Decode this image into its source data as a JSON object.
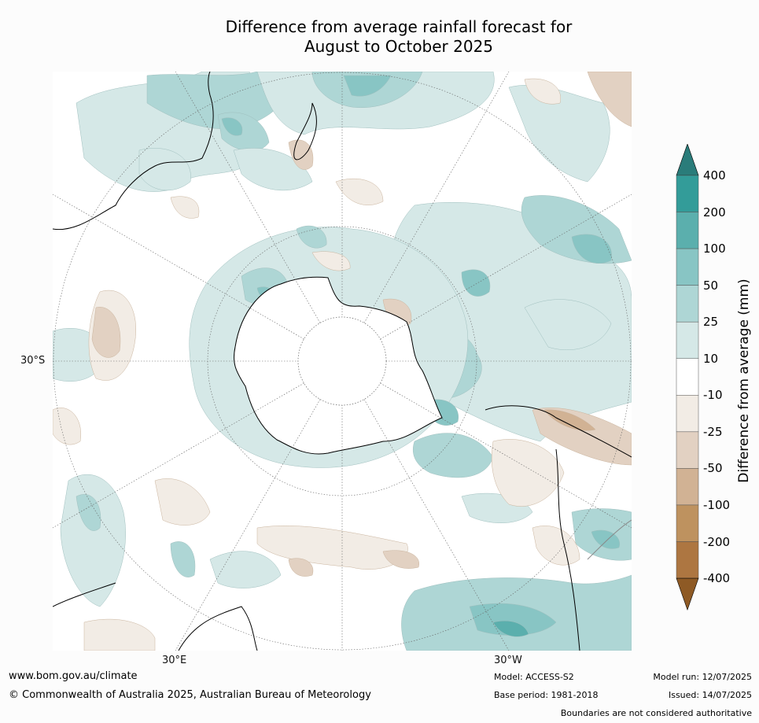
{
  "title_line1": "Difference from average rainfall forecast for",
  "title_line2": "August to October 2025",
  "lat_label": "30°S",
  "lon_label_left": "30°E",
  "lon_label_right": "30°W",
  "colorbar": {
    "title": "Difference from average (mm)",
    "ticks": [
      "400",
      "200",
      "100",
      "50",
      "25",
      "10",
      "-10",
      "-25",
      "-50",
      "-100",
      "-200",
      "-400"
    ],
    "colors": {
      "over": "#2a7c7a",
      "c200_400": "#339c99",
      "c100_200": "#5bafad",
      "c50_100": "#88c5c4",
      "c25_50": "#aed6d5",
      "c10_25": "#d5e8e7",
      "c_neutral": "#ffffff",
      "m10_25": "#f2ece5",
      "m25_50": "#e2d1c2",
      "m50_100": "#d1b294",
      "m100_200": "#be925f",
      "m200_400": "#ad7641",
      "under": "#8e5a25"
    }
  },
  "footer": {
    "url": "www.bom.gov.au/climate",
    "copyright": "© Commonwealth of Australia 2025, Australian Bureau of Meteorology",
    "model": "Model: ACCESS-S2",
    "base_period": "Base period: 1981-2018",
    "model_run": "Model run: 12/07/2025",
    "issued": "Issued: 14/07/2025",
    "disclaimer": "Boundaries are not considered authoritative"
  }
}
